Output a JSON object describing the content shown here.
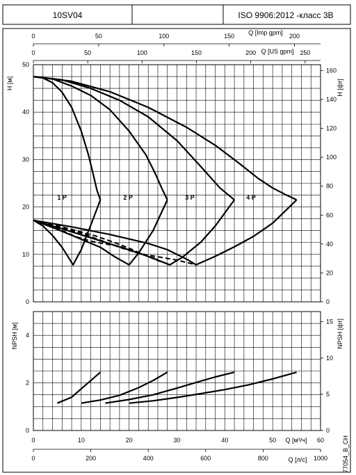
{
  "header": {
    "model": "10SV04",
    "middle": "",
    "standard": "ISO 9906:2012 -класс 3B"
  },
  "footer_code": "77054_B_CH",
  "chart_data": [
    {
      "type": "line",
      "panel": "head",
      "xlim": [
        0,
        60
      ],
      "ylim": [
        0,
        50
      ],
      "y_ticks": [
        0,
        10,
        20,
        30,
        40,
        50
      ],
      "ylabel": "H [м]",
      "secondary_y": {
        "label": "H [фт]",
        "ticks": [
          0,
          20,
          40,
          60,
          80,
          100,
          120,
          140,
          160
        ],
        "factor": 3.2808
      },
      "top_axes": [
        {
          "label": "Q [Imp gpm]",
          "ticks": [
            0,
            50,
            100,
            150,
            200
          ],
          "factor": 3.6662
        },
        {
          "label": "Q [US gpm]",
          "ticks": [
            0,
            50,
            100,
            150,
            200,
            250
          ],
          "factor": 4.4029
        }
      ],
      "grid": true,
      "series": [
        {
          "name": "1 P",
          "label_at": [
            5,
            22
          ],
          "x": [
            0,
            2,
            4,
            6,
            8,
            10,
            11.5,
            12.6,
            13.3,
            14.0
          ],
          "y": [
            47.5,
            47.2,
            46.2,
            44.2,
            41.0,
            36.0,
            31.0,
            26.5,
            23.5,
            21.5
          ]
        },
        {
          "name": "2 P",
          "label_at": [
            18.8,
            22
          ],
          "x": [
            0,
            4,
            8,
            12,
            16,
            20,
            23.5,
            25.5,
            26.8,
            28.0
          ],
          "y": [
            47.5,
            47.0,
            45.5,
            43.5,
            40.5,
            36.0,
            31.0,
            27.0,
            24.0,
            21.5
          ]
        },
        {
          "name": "3 P",
          "label_at": [
            31.7,
            22
          ],
          "x": [
            0,
            6,
            12,
            18,
            24,
            30,
            35,
            39,
            42.0
          ],
          "y": [
            47.5,
            46.8,
            45.0,
            42.5,
            39.0,
            34.0,
            28.5,
            24.0,
            21.5
          ]
        },
        {
          "name": "4 P",
          "label_at": [
            44.5,
            22
          ],
          "x": [
            0,
            8,
            16,
            24,
            32,
            38,
            43,
            47,
            50,
            52.5,
            55.0
          ],
          "y": [
            47.5,
            46.5,
            44.3,
            41.0,
            36.8,
            33.0,
            29.2,
            26.0,
            24.0,
            22.7,
            21.5
          ]
        }
      ],
      "efficiency_curves": [
        {
          "x": [
            0,
            2,
            4,
            6,
            8.3,
            10,
            12,
            14
          ],
          "y": [
            17.2,
            16.0,
            14.0,
            11.5,
            7.8,
            11.0,
            16.2,
            21.5
          ]
        },
        {
          "x": [
            0,
            5,
            10,
            14,
            17,
            20.0,
            22,
            25,
            28
          ],
          "y": [
            17.2,
            15.3,
            13.2,
            11.5,
            9.5,
            7.8,
            10.3,
            15.0,
            21.5
          ]
        },
        {
          "x": [
            0,
            6,
            12,
            18,
            22,
            25,
            28.5,
            31,
            35,
            38,
            42
          ],
          "y": [
            17.2,
            15.4,
            13.5,
            11.6,
            10.3,
            9.2,
            7.8,
            9.3,
            12.6,
            16.0,
            21.5
          ]
        },
        {
          "x": [
            0,
            8,
            16,
            24,
            28,
            30,
            32,
            34.0,
            38,
            42,
            46,
            50,
            55
          ],
          "y": [
            17.2,
            15.8,
            14.2,
            12.3,
            11.0,
            10.0,
            9.0,
            7.8,
            9.6,
            11.6,
            13.8,
            16.6,
            21.5
          ]
        }
      ],
      "dashed_curves": [
        {
          "x": [
            0,
            3,
            6,
            9,
            13,
            17,
            20,
            23,
            26,
            28.5
          ],
          "y": [
            17.2,
            16.6,
            15.8,
            15.0,
            13.9,
            12.5,
            11.3,
            10.0,
            8.7,
            7.8
          ]
        },
        {
          "x": [
            0,
            3,
            6,
            9,
            12,
            15,
            18,
            20,
            22,
            24,
            26
          ],
          "y": [
            17.2,
            16.3,
            15.0,
            13.7,
            12.8,
            12.2,
            11.7,
            11.0,
            10.3,
            9.6,
            9.0
          ]
        },
        {
          "x": [
            0,
            3,
            6,
            10,
            14,
            18,
            22,
            26,
            30,
            34.0
          ],
          "y": [
            17.2,
            16.5,
            15.5,
            14.5,
            13.0,
            11.5,
            10.2,
            9.5,
            8.8,
            7.8
          ]
        }
      ]
    },
    {
      "type": "line",
      "panel": "npsh",
      "xlim": [
        0,
        60
      ],
      "ylim": [
        0,
        5
      ],
      "y_ticks": [
        0,
        2,
        4
      ],
      "ylabel": "NPSH [м]",
      "secondary_y": {
        "label": "NPSH [фт]",
        "ticks": [
          0,
          5,
          10,
          15
        ],
        "factor": 3.2808
      },
      "bottom_axes": [
        {
          "label": "Q [м³/ч]",
          "ticks": [
            0,
            10,
            20,
            30,
            40,
            50,
            60
          ],
          "factor": 1
        },
        {
          "label": "Q [л/с]",
          "ticks": [
            0,
            200,
            400,
            600,
            800,
            1000
          ],
          "factor": 16.667
        }
      ],
      "grid": true,
      "series": [
        {
          "x": [
            5,
            8,
            10,
            12,
            14
          ],
          "y": [
            1.15,
            1.4,
            1.75,
            2.1,
            2.45
          ]
        },
        {
          "x": [
            10,
            14,
            18,
            22,
            25,
            28
          ],
          "y": [
            1.15,
            1.28,
            1.48,
            1.8,
            2.1,
            2.45
          ]
        },
        {
          "x": [
            15,
            20,
            25,
            30,
            35,
            38,
            42
          ],
          "y": [
            1.15,
            1.3,
            1.5,
            1.78,
            2.08,
            2.25,
            2.45
          ]
        },
        {
          "x": [
            20,
            25,
            30,
            35,
            40,
            45,
            50,
            55
          ],
          "y": [
            1.15,
            1.25,
            1.39,
            1.55,
            1.72,
            1.92,
            2.17,
            2.45
          ]
        }
      ]
    }
  ]
}
